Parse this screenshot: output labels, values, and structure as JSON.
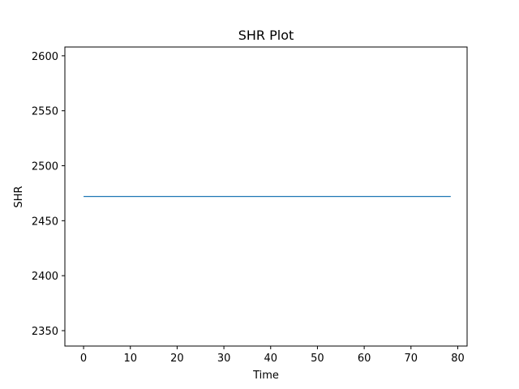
{
  "chart_data": {
    "type": "line",
    "title": "SHR Plot",
    "xlabel": "Time",
    "ylabel": "SHR",
    "xlim": [
      -4,
      82
    ],
    "ylim": [
      2336,
      2608
    ],
    "xticks": [
      0,
      10,
      20,
      30,
      40,
      50,
      60,
      70,
      80
    ],
    "yticks": [
      2350,
      2400,
      2450,
      2500,
      2550,
      2600
    ],
    "xtick_labels": [
      "0",
      "10",
      "20",
      "30",
      "40",
      "50",
      "60",
      "70",
      "80"
    ],
    "ytick_labels": [
      "2350",
      "2400",
      "2450",
      "2500",
      "2550",
      "2600"
    ],
    "grid": false,
    "series": [
      {
        "color": "#1f77b4",
        "x": [
          0,
          78.5
        ],
        "y": [
          2472,
          2472
        ]
      }
    ]
  }
}
